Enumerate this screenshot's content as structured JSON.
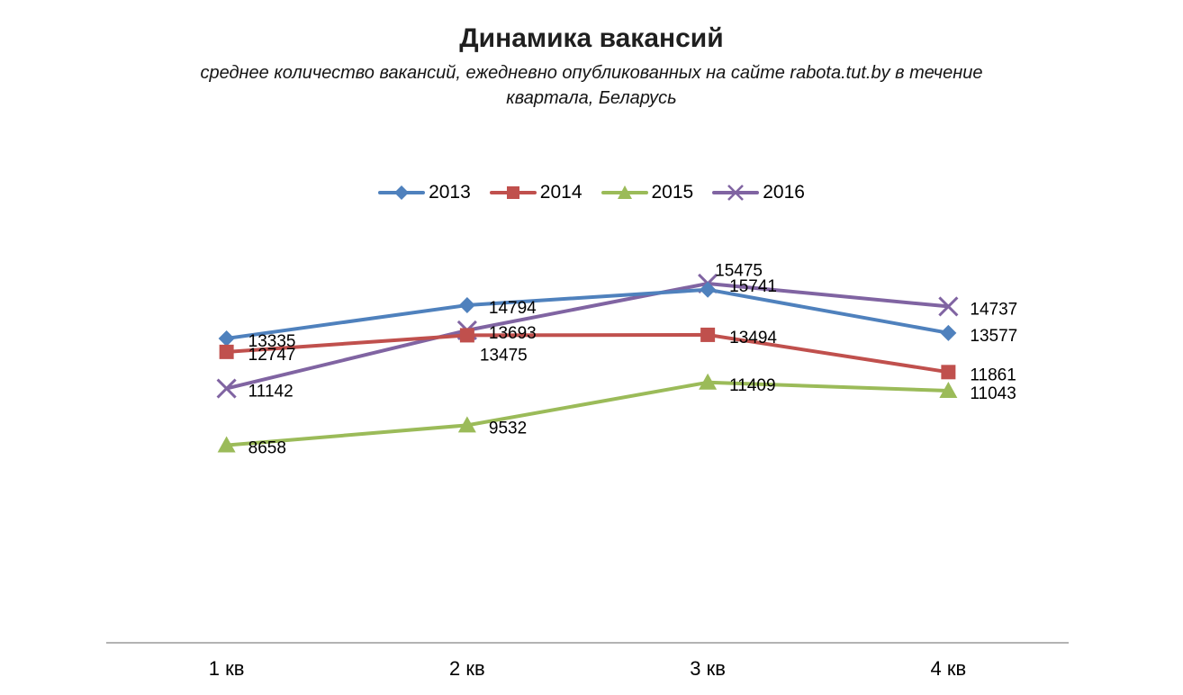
{
  "chart_data": {
    "type": "line",
    "title": "Динамика вакансий",
    "subtitle": "среднее количество вакансий, ежедневно опубликованных на сайте rabota.tut.by в течение квартала, Беларусь",
    "categories": [
      "1 кв",
      "2 кв",
      "3 кв",
      "4 кв"
    ],
    "series": [
      {
        "name": "2013",
        "color": "#4F81BD",
        "marker": "diamond",
        "values": [
          13335,
          14794,
          15475,
          13577
        ],
        "label_positions": [
          "right",
          "right",
          "above",
          "right"
        ]
      },
      {
        "name": "2014",
        "color": "#C0504D",
        "marker": "square",
        "values": [
          12747,
          13475,
          13494,
          11861
        ],
        "label_positions": [
          "right",
          "below",
          "right",
          "right"
        ]
      },
      {
        "name": "2015",
        "color": "#9BBB59",
        "marker": "triangle",
        "values": [
          8658,
          9532,
          11409,
          11043
        ],
        "label_positions": [
          "right",
          "right",
          "right",
          "right"
        ]
      },
      {
        "name": "2016",
        "color": "#8064A2",
        "marker": "x",
        "values": [
          11142,
          13693,
          15741,
          14737
        ],
        "label_positions": [
          "right",
          "right",
          "right",
          "right"
        ]
      }
    ],
    "xlabel": "",
    "ylabel": "",
    "ylim": [
      0,
      18000
    ],
    "grid": false,
    "yaxis_visible": false,
    "legend_position": "top",
    "data_labels": true,
    "draw_order": [
      3,
      0,
      1,
      2
    ]
  }
}
